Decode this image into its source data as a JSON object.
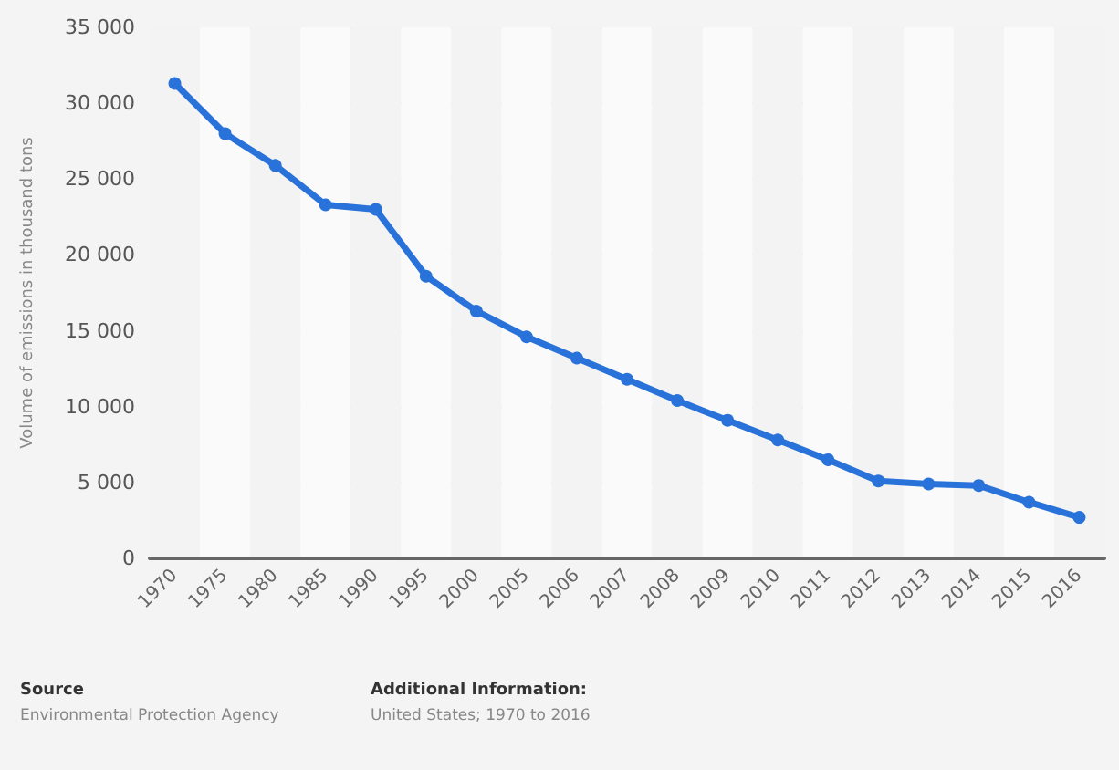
{
  "chart_data": {
    "type": "line",
    "ylabel": "Volume of emissions in thousand tons",
    "categories": [
      "1970",
      "1975",
      "1980",
      "1985",
      "1990",
      "1995",
      "2000",
      "2005",
      "2006",
      "2007",
      "2008",
      "2009",
      "2010",
      "2011",
      "2012",
      "2013",
      "2014",
      "2015",
      "2016"
    ],
    "series": [
      {
        "color": "#2872d9",
        "values": [
          31300,
          28000,
          25900,
          23300,
          23000,
          18600,
          16300,
          14600,
          13200,
          11800,
          10400,
          9100,
          7800,
          6500,
          5100,
          4900,
          4800,
          3700,
          2700
        ]
      }
    ],
    "ylim": [
      0,
      35000
    ],
    "yticks": [
      {
        "value": 0,
        "label": "0"
      },
      {
        "value": 5000,
        "label": "5 000"
      },
      {
        "value": 10000,
        "label": "10 000"
      },
      {
        "value": 15000,
        "label": "15 000"
      },
      {
        "value": 20000,
        "label": "20 000"
      },
      {
        "value": 25000,
        "label": "25 000"
      },
      {
        "value": 30000,
        "label": "30 000"
      },
      {
        "value": 35000,
        "label": "35 000"
      }
    ],
    "grid": "y",
    "marker": "circle",
    "line_style": "solid",
    "annotations": [
      "Source",
      "Environmental Protection Agency",
      "Additional Information:",
      "United States; 1970 to 2016"
    ]
  }
}
